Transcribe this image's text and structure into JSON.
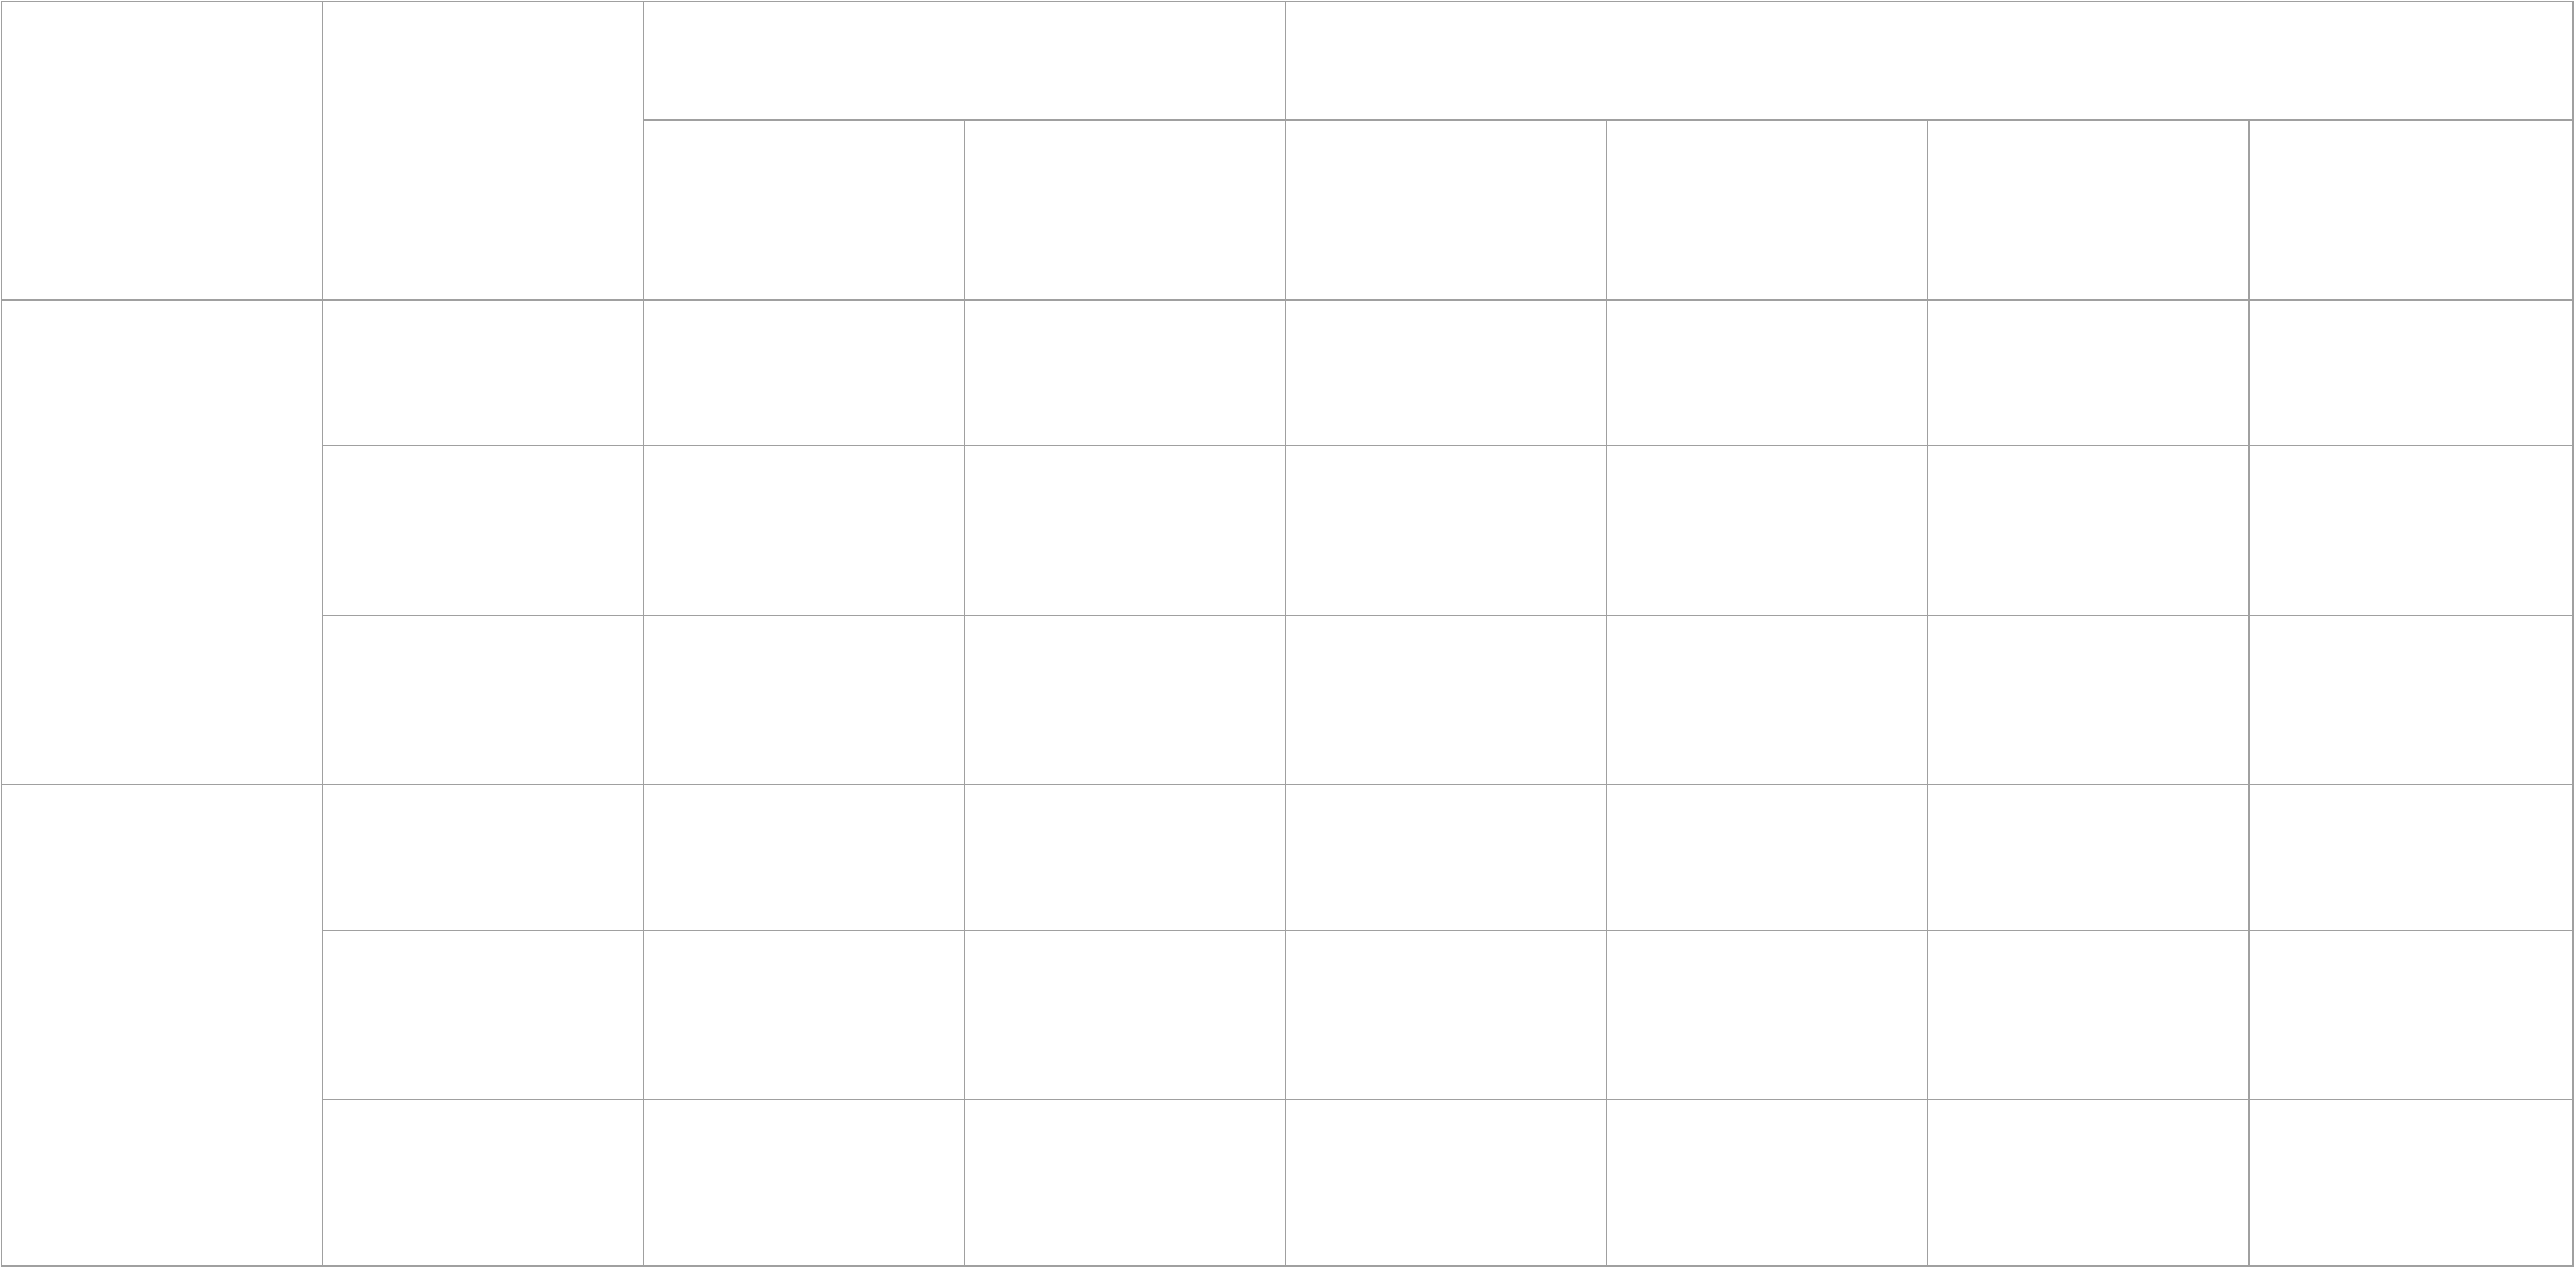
{
  "table": {
    "rows": [
      [
        {
          "name": "header-corner-1",
          "text": "",
          "rowspan": 2
        },
        {
          "name": "header-corner-2",
          "text": "",
          "rowspan": 2
        },
        {
          "name": "header-group-1",
          "text": "",
          "colspan": 2
        },
        {
          "name": "header-group-2",
          "text": "",
          "colspan": 4
        }
      ],
      [
        {
          "name": "subheader-cell",
          "text": ""
        },
        {
          "name": "subheader-cell",
          "text": ""
        },
        {
          "name": "subheader-cell",
          "text": ""
        },
        {
          "name": "subheader-cell",
          "text": ""
        },
        {
          "name": "subheader-cell",
          "text": ""
        },
        {
          "name": "subheader-cell",
          "text": ""
        }
      ],
      [
        {
          "name": "row-group-label-1",
          "text": "",
          "rowspan": 3
        },
        {
          "name": "row-label",
          "text": ""
        },
        {
          "name": "data-cell",
          "text": ""
        },
        {
          "name": "data-cell",
          "text": ""
        },
        {
          "name": "data-cell",
          "text": ""
        },
        {
          "name": "data-cell",
          "text": ""
        },
        {
          "name": "data-cell",
          "text": ""
        },
        {
          "name": "data-cell",
          "text": ""
        }
      ],
      [
        {
          "name": "row-label",
          "text": ""
        },
        {
          "name": "data-cell",
          "text": ""
        },
        {
          "name": "data-cell",
          "text": ""
        },
        {
          "name": "data-cell",
          "text": ""
        },
        {
          "name": "data-cell",
          "text": ""
        },
        {
          "name": "data-cell",
          "text": ""
        },
        {
          "name": "data-cell",
          "text": ""
        }
      ],
      [
        {
          "name": "row-label",
          "text": ""
        },
        {
          "name": "data-cell",
          "text": ""
        },
        {
          "name": "data-cell",
          "text": ""
        },
        {
          "name": "data-cell",
          "text": ""
        },
        {
          "name": "data-cell",
          "text": ""
        },
        {
          "name": "data-cell",
          "text": ""
        },
        {
          "name": "data-cell",
          "text": ""
        }
      ],
      [
        {
          "name": "row-group-label-2",
          "text": "",
          "rowspan": 3
        },
        {
          "name": "row-label",
          "text": ""
        },
        {
          "name": "data-cell",
          "text": ""
        },
        {
          "name": "data-cell",
          "text": ""
        },
        {
          "name": "data-cell",
          "text": ""
        },
        {
          "name": "data-cell",
          "text": ""
        },
        {
          "name": "data-cell",
          "text": ""
        },
        {
          "name": "data-cell",
          "text": ""
        }
      ],
      [
        {
          "name": "row-label",
          "text": ""
        },
        {
          "name": "data-cell",
          "text": ""
        },
        {
          "name": "data-cell",
          "text": ""
        },
        {
          "name": "data-cell",
          "text": ""
        },
        {
          "name": "data-cell",
          "text": ""
        },
        {
          "name": "data-cell",
          "text": ""
        },
        {
          "name": "data-cell",
          "text": ""
        }
      ],
      [
        {
          "name": "row-label",
          "text": ""
        },
        {
          "name": "data-cell",
          "text": ""
        },
        {
          "name": "data-cell",
          "text": ""
        },
        {
          "name": "data-cell",
          "text": ""
        },
        {
          "name": "data-cell",
          "text": ""
        },
        {
          "name": "data-cell",
          "text": ""
        },
        {
          "name": "data-cell",
          "text": ""
        }
      ]
    ]
  }
}
